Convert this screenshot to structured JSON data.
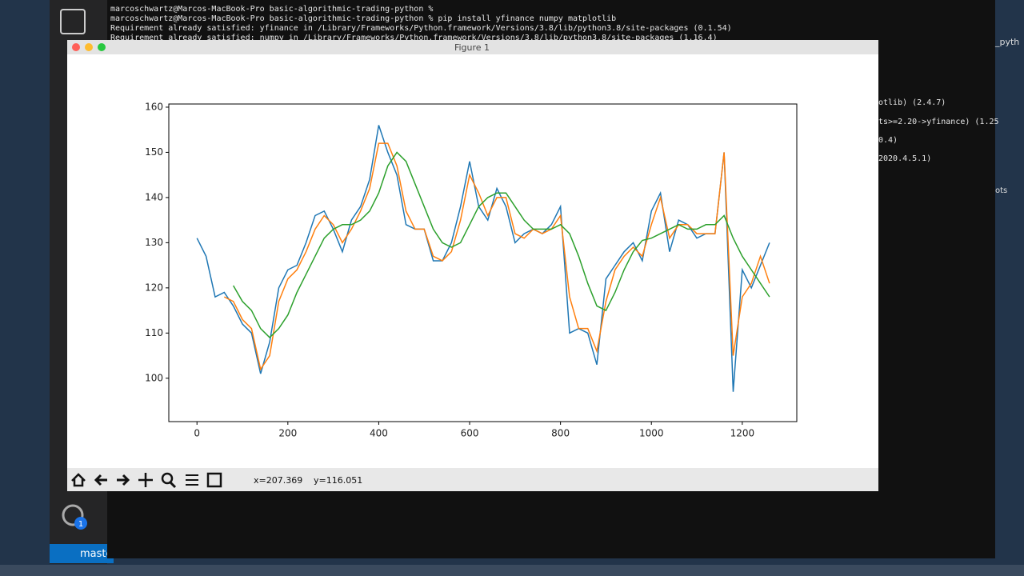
{
  "terminal": {
    "lines": [
      "marcoschwartz@Marcos-MacBook-Pro basic-algorithmic-trading-python %",
      "marcoschwartz@Marcos-MacBook-Pro basic-algorithmic-trading-python % pip install yfinance numpy matplotlib",
      "Requirement already satisfied: yfinance in /Library/Frameworks/Python.framework/Versions/3.8/lib/python3.8/site-packages (0.1.54)",
      "Requirement already satisfied: numpy in /Library/Frameworks/Python.framework/Versions/3.8/lib/python3.8/site-packages (1.16.4)"
    ],
    "right_fragments": [
      "otlib) (2.4.7)",
      "ts>=2.20->yfinance) (1.25",
      "0.4)",
      "2020.4.5.1)"
    ]
  },
  "sidebar": {
    "file_label": "_pyth",
    "file_label_2": "ots",
    "branch": "maste",
    "badge": "1"
  },
  "window": {
    "title": "Figure 1"
  },
  "status": {
    "x": "x=207.369",
    "y": "y=116.051"
  },
  "chart_data": {
    "type": "line",
    "x": [
      0,
      20,
      40,
      60,
      80,
      100,
      120,
      140,
      160,
      180,
      200,
      220,
      240,
      260,
      280,
      300,
      320,
      340,
      360,
      380,
      400,
      420,
      440,
      460,
      480,
      500,
      520,
      540,
      560,
      580,
      600,
      620,
      640,
      660,
      680,
      700,
      720,
      740,
      760,
      780,
      800,
      820,
      840,
      860,
      880,
      900,
      920,
      940,
      960,
      980,
      1000,
      1020,
      1040,
      1060,
      1080,
      1100,
      1120,
      1140,
      1160,
      1180,
      1200,
      1220,
      1240,
      1260
    ],
    "series": [
      {
        "color": "#1f77b4",
        "values": [
          131,
          127,
          118,
          119,
          116,
          112,
          110,
          101,
          108,
          120,
          124,
          125,
          130,
          136,
          137,
          133,
          128,
          135,
          138,
          144,
          156,
          150,
          145,
          134,
          133,
          133,
          126,
          126,
          130,
          138,
          148,
          138,
          135,
          142,
          138,
          130,
          132,
          133,
          132,
          134,
          138,
          110,
          111,
          110,
          103,
          122,
          125,
          128,
          130,
          126,
          137,
          141,
          128,
          135,
          134,
          131,
          132,
          132,
          150,
          97,
          124,
          120,
          125,
          130
        ]
      },
      {
        "color": "#ff7f0e",
        "values": [
          null,
          null,
          null,
          118,
          117,
          113,
          111,
          102,
          105,
          117,
          122,
          124,
          128,
          133,
          136,
          134,
          130,
          133,
          137,
          142,
          152,
          152,
          147,
          137,
          133,
          133,
          127,
          126,
          128,
          135,
          145,
          141,
          136,
          140,
          140,
          132,
          131,
          133,
          132,
          133,
          136,
          118,
          111,
          111,
          106,
          117,
          124,
          127,
          129,
          127,
          134,
          140,
          131,
          134,
          134,
          132,
          132,
          132,
          150,
          105,
          118,
          121,
          127,
          121
        ]
      },
      {
        "color": "#2ca02c",
        "values": [
          null,
          null,
          null,
          null,
          120.5,
          117,
          115,
          111,
          109,
          111,
          114,
          119,
          123,
          127,
          131,
          133,
          134,
          134,
          135,
          137,
          141,
          147,
          150,
          148,
          143,
          138,
          133,
          130,
          129,
          130,
          134,
          138,
          140,
          141,
          141,
          138,
          135,
          133,
          133,
          133,
          134,
          132,
          127,
          121,
          116,
          115,
          119,
          124,
          128,
          130.5,
          131,
          132,
          133,
          134,
          133,
          133,
          134,
          134,
          136,
          131,
          127,
          124,
          121,
          118
        ]
      }
    ],
    "xlim": [
      -62,
      1320
    ],
    "ylim": [
      90.4,
      160.7
    ],
    "xticks": [
      0,
      200,
      400,
      600,
      800,
      1000,
      1200
    ],
    "yticks": [
      100,
      110,
      120,
      130,
      140,
      150,
      160
    ],
    "grid": false
  }
}
